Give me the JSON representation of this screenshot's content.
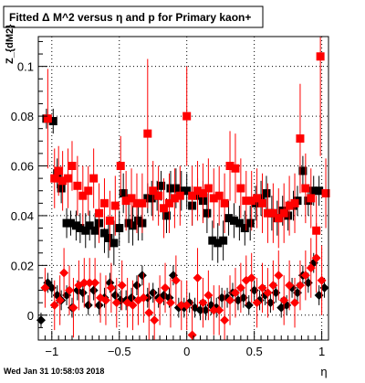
{
  "chart_data": {
    "type": "scatter",
    "title": "Fitted Δ M^2 versus η and p for Primary kaon+",
    "xlabel": "η",
    "ylabel": "Z_{dM2}",
    "footer": "Wed Jan 31 10:58:03 2018",
    "xlim": [
      -1.1,
      1.05
    ],
    "ylim": [
      -0.01,
      0.112
    ],
    "grid": true,
    "x_ticks": [
      -1,
      -0.5,
      0,
      0.5,
      1
    ],
    "x_tick_labels": [
      "−1",
      "−0.5",
      "0",
      "0.5",
      "1"
    ],
    "y_ticks": [
      0,
      0.02,
      0.04,
      0.06,
      0.08,
      0.1
    ],
    "y_tick_labels": [
      "0",
      "0.02",
      "0.04",
      "0.06",
      "0.08",
      "0.1"
    ],
    "colors": {
      "series_a": "#000000",
      "series_b": "#ff0000"
    },
    "series": [
      {
        "marker": "square",
        "color": "#000000",
        "points": [
          [
            -1.04,
            0.079,
            0.004
          ],
          [
            -0.99,
            0.078,
            0.005
          ],
          [
            -0.96,
            0.057,
            0.006
          ],
          [
            -0.93,
            0.051,
            0.006
          ],
          [
            -0.89,
            0.037,
            0.006
          ],
          [
            -0.86,
            0.037,
            0.005
          ],
          [
            -0.82,
            0.036,
            0.006
          ],
          [
            -0.79,
            0.035,
            0.006
          ],
          [
            -0.75,
            0.034,
            0.007
          ],
          [
            -0.72,
            0.036,
            0.006
          ],
          [
            -0.68,
            0.034,
            0.007
          ],
          [
            -0.65,
            0.037,
            0.006
          ],
          [
            -0.61,
            0.033,
            0.008
          ],
          [
            -0.58,
            0.031,
            0.008
          ],
          [
            -0.54,
            0.029,
            0.009
          ],
          [
            -0.5,
            0.035,
            0.007
          ],
          [
            -0.47,
            0.049,
            0.008
          ],
          [
            -0.43,
            0.037,
            0.008
          ],
          [
            -0.4,
            0.036,
            0.008
          ],
          [
            -0.36,
            0.038,
            0.008
          ],
          [
            -0.33,
            0.037,
            0.007
          ],
          [
            -0.29,
            0.047,
            0.006
          ],
          [
            -0.26,
            0.047,
            0.007
          ],
          [
            -0.22,
            0.048,
            0.006
          ],
          [
            -0.19,
            0.052,
            0.006
          ],
          [
            -0.15,
            0.04,
            0.007
          ],
          [
            -0.12,
            0.051,
            0.007
          ],
          [
            -0.08,
            0.051,
            0.008
          ],
          [
            -0.04,
            0.05,
            0.008
          ],
          [
            0.0,
            0.05,
            0.007
          ],
          [
            0.04,
            0.044,
            0.008
          ],
          [
            0.08,
            0.048,
            0.007
          ],
          [
            0.12,
            0.046,
            0.008
          ],
          [
            0.15,
            0.041,
            0.008
          ],
          [
            0.19,
            0.03,
            0.008
          ],
          [
            0.23,
            0.029,
            0.008
          ],
          [
            0.27,
            0.03,
            0.008
          ],
          [
            0.31,
            0.039,
            0.007
          ],
          [
            0.35,
            0.038,
            0.007
          ],
          [
            0.39,
            0.037,
            0.007
          ],
          [
            0.43,
            0.035,
            0.007
          ],
          [
            0.47,
            0.037,
            0.007
          ],
          [
            0.51,
            0.045,
            0.007
          ],
          [
            0.55,
            0.047,
            0.007
          ],
          [
            0.59,
            0.049,
            0.007
          ],
          [
            0.63,
            0.041,
            0.007
          ],
          [
            0.67,
            0.039,
            0.007
          ],
          [
            0.71,
            0.042,
            0.006
          ],
          [
            0.75,
            0.04,
            0.006
          ],
          [
            0.79,
            0.044,
            0.006
          ],
          [
            0.82,
            0.046,
            0.006
          ],
          [
            0.86,
            0.058,
            0.006
          ],
          [
            0.9,
            0.046,
            0.006
          ],
          [
            0.94,
            0.05,
            0.006
          ],
          [
            0.98,
            0.05,
            0.006
          ]
        ]
      },
      {
        "marker": "square",
        "color": "#ff0000",
        "points": [
          [
            -1.03,
            0.079,
            0.02
          ],
          [
            -0.98,
            0.055,
            0.012
          ],
          [
            -0.95,
            0.058,
            0.01
          ],
          [
            -0.92,
            0.054,
            0.012
          ],
          [
            -0.88,
            0.055,
            0.012
          ],
          [
            -0.85,
            0.06,
            0.01
          ],
          [
            -0.81,
            0.052,
            0.012
          ],
          [
            -0.77,
            0.048,
            0.012
          ],
          [
            -0.73,
            0.05,
            0.01
          ],
          [
            -0.69,
            0.055,
            0.012
          ],
          [
            -0.65,
            0.041,
            0.012
          ],
          [
            -0.61,
            0.045,
            0.01
          ],
          [
            -0.57,
            0.038,
            0.012
          ],
          [
            -0.53,
            0.044,
            0.012
          ],
          [
            -0.49,
            0.06,
            0.012
          ],
          [
            -0.45,
            0.046,
            0.012
          ],
          [
            -0.41,
            0.047,
            0.012
          ],
          [
            -0.37,
            0.045,
            0.012
          ],
          [
            -0.33,
            0.045,
            0.012
          ],
          [
            -0.29,
            0.073,
            0.03
          ],
          [
            -0.25,
            0.05,
            0.012
          ],
          [
            -0.21,
            0.048,
            0.012
          ],
          [
            -0.17,
            0.043,
            0.012
          ],
          [
            -0.13,
            0.045,
            0.012
          ],
          [
            -0.09,
            0.047,
            0.012
          ],
          [
            -0.05,
            0.048,
            0.012
          ],
          [
            0.0,
            0.08,
            0.02
          ],
          [
            0.04,
            0.048,
            0.012
          ],
          [
            0.08,
            0.05,
            0.012
          ],
          [
            0.12,
            0.049,
            0.012
          ],
          [
            0.16,
            0.051,
            0.012
          ],
          [
            0.2,
            0.047,
            0.012
          ],
          [
            0.24,
            0.048,
            0.012
          ],
          [
            0.28,
            0.045,
            0.012
          ],
          [
            0.32,
            0.06,
            0.014
          ],
          [
            0.36,
            0.059,
            0.014
          ],
          [
            0.4,
            0.051,
            0.012
          ],
          [
            0.44,
            0.046,
            0.012
          ],
          [
            0.48,
            0.046,
            0.012
          ],
          [
            0.52,
            0.047,
            0.012
          ],
          [
            0.56,
            0.045,
            0.012
          ],
          [
            0.6,
            0.041,
            0.012
          ],
          [
            0.64,
            0.041,
            0.012
          ],
          [
            0.68,
            0.039,
            0.012
          ],
          [
            0.72,
            0.041,
            0.012
          ],
          [
            0.76,
            0.044,
            0.012
          ],
          [
            0.8,
            0.045,
            0.012
          ],
          [
            0.84,
            0.071,
            0.022
          ],
          [
            0.88,
            0.051,
            0.014
          ],
          [
            0.92,
            0.047,
            0.012
          ],
          [
            0.96,
            0.034,
            0.014
          ],
          [
            0.99,
            0.104,
            0.04
          ],
          [
            1.03,
            0.049,
            0.014
          ]
        ]
      },
      {
        "marker": "diamond",
        "color": "#000000",
        "points": [
          [
            -1.08,
            -0.002,
            0.003
          ],
          [
            -1.03,
            0.013,
            0.004
          ],
          [
            -1.0,
            0.011,
            0.004
          ],
          [
            -0.96,
            0.008,
            0.004
          ],
          [
            -0.93,
            0.006,
            0.004
          ],
          [
            -0.89,
            0.008,
            0.004
          ],
          [
            -0.85,
            0.003,
            0.004
          ],
          [
            -0.81,
            0.01,
            0.004
          ],
          [
            -0.77,
            0.009,
            0.004
          ],
          [
            -0.73,
            0.004,
            0.004
          ],
          [
            -0.69,
            0.01,
            0.004
          ],
          [
            -0.65,
            0.004,
            0.004
          ],
          [
            -0.61,
            0.007,
            0.004
          ],
          [
            -0.57,
            0.013,
            0.004
          ],
          [
            -0.53,
            0.008,
            0.004
          ],
          [
            -0.49,
            0.006,
            0.004
          ],
          [
            -0.45,
            0.006,
            0.004
          ],
          [
            -0.41,
            0.007,
            0.004
          ],
          [
            -0.37,
            0.012,
            0.004
          ],
          [
            -0.33,
            0.016,
            0.004
          ],
          [
            -0.29,
            0.007,
            0.004
          ],
          [
            -0.25,
            0.009,
            0.004
          ],
          [
            -0.21,
            0.007,
            0.004
          ],
          [
            -0.17,
            0.008,
            0.004
          ],
          [
            -0.13,
            0.007,
            0.004
          ],
          [
            -0.1,
            0.016,
            0.004
          ],
          [
            -0.06,
            0.003,
            0.004
          ],
          [
            -0.02,
            0.003,
            0.004
          ],
          [
            0.02,
            0.005,
            0.004
          ],
          [
            0.06,
            0.003,
            0.004
          ],
          [
            0.1,
            0.002,
            0.004
          ],
          [
            0.14,
            0.002,
            0.004
          ],
          [
            0.18,
            0.004,
            0.004
          ],
          [
            0.22,
            0.003,
            0.004
          ],
          [
            0.26,
            0.007,
            0.004
          ],
          [
            0.3,
            0.007,
            0.004
          ],
          [
            0.34,
            0.009,
            0.004
          ],
          [
            0.38,
            0.006,
            0.004
          ],
          [
            0.42,
            0.007,
            0.004
          ],
          [
            0.46,
            0.004,
            0.004
          ],
          [
            0.5,
            0.01,
            0.004
          ],
          [
            0.54,
            0.006,
            0.004
          ],
          [
            0.58,
            0.008,
            0.004
          ],
          [
            0.62,
            0.005,
            0.004
          ],
          [
            0.66,
            0.009,
            0.004
          ],
          [
            0.7,
            0.003,
            0.004
          ],
          [
            0.74,
            0.004,
            0.004
          ],
          [
            0.78,
            0.011,
            0.004
          ],
          [
            0.82,
            0.009,
            0.004
          ],
          [
            0.86,
            0.016,
            0.004
          ],
          [
            0.9,
            0.013,
            0.004
          ],
          [
            0.94,
            0.021,
            0.004
          ],
          [
            0.98,
            0.008,
            0.004
          ],
          [
            1.02,
            0.011,
            0.004
          ]
        ]
      },
      {
        "marker": "diamond",
        "color": "#ff0000",
        "points": [
          [
            -1.05,
            0.011,
            0.008
          ],
          [
            -0.98,
            0.004,
            0.01
          ],
          [
            -0.94,
            0.006,
            0.01
          ],
          [
            -0.91,
            0.017,
            0.01
          ],
          [
            -0.87,
            0.01,
            0.01
          ],
          [
            -0.84,
            0.003,
            0.012
          ],
          [
            -0.8,
            0.012,
            0.01
          ],
          [
            -0.76,
            0.013,
            0.01
          ],
          [
            -0.72,
            0.013,
            0.01
          ],
          [
            -0.68,
            0.013,
            0.01
          ],
          [
            -0.64,
            0.007,
            0.01
          ],
          [
            -0.6,
            0.006,
            0.01
          ],
          [
            -0.56,
            0.011,
            0.01
          ],
          [
            -0.52,
            0.005,
            0.01
          ],
          [
            -0.48,
            0.012,
            0.01
          ],
          [
            -0.44,
            0.005,
            0.01
          ],
          [
            -0.4,
            0.004,
            0.01
          ],
          [
            -0.36,
            0.006,
            0.01
          ],
          [
            -0.32,
            0.007,
            0.01
          ],
          [
            -0.28,
            0.001,
            0.012
          ],
          [
            -0.24,
            -0.002,
            0.012
          ],
          [
            -0.2,
            0.006,
            0.01
          ],
          [
            -0.16,
            0.011,
            0.01
          ],
          [
            -0.12,
            0.005,
            0.01
          ],
          [
            -0.08,
            0.014,
            0.01
          ],
          [
            -0.04,
            0.004,
            0.01
          ],
          [
            0.0,
            0.004,
            0.01
          ],
          [
            0.04,
            -0.008,
            0.014
          ],
          [
            0.08,
            0.015,
            0.012
          ],
          [
            0.12,
            0.005,
            0.01
          ],
          [
            0.16,
            0.008,
            0.01
          ],
          [
            0.2,
            0.002,
            0.01
          ],
          [
            0.24,
            0.002,
            0.01
          ],
          [
            0.28,
            -0.002,
            0.012
          ],
          [
            0.32,
            0.006,
            0.01
          ],
          [
            0.36,
            0.009,
            0.01
          ],
          [
            0.4,
            0.011,
            0.01
          ],
          [
            0.44,
            0.014,
            0.01
          ],
          [
            0.48,
            0.015,
            0.01
          ],
          [
            0.52,
            0.005,
            0.01
          ],
          [
            0.56,
            0.011,
            0.01
          ],
          [
            0.6,
            0.009,
            0.01
          ],
          [
            0.64,
            0.012,
            0.01
          ],
          [
            0.68,
            0.016,
            0.01
          ],
          [
            0.72,
            0.006,
            0.01
          ],
          [
            0.76,
            0.012,
            0.01
          ],
          [
            0.8,
            0.005,
            0.01
          ],
          [
            0.84,
            0.012,
            0.01
          ],
          [
            0.88,
            0.016,
            0.01
          ],
          [
            0.92,
            0.019,
            0.012
          ],
          [
            0.96,
            0.023,
            0.014
          ],
          [
            1.0,
            0.014,
            0.014
          ]
        ]
      }
    ]
  }
}
